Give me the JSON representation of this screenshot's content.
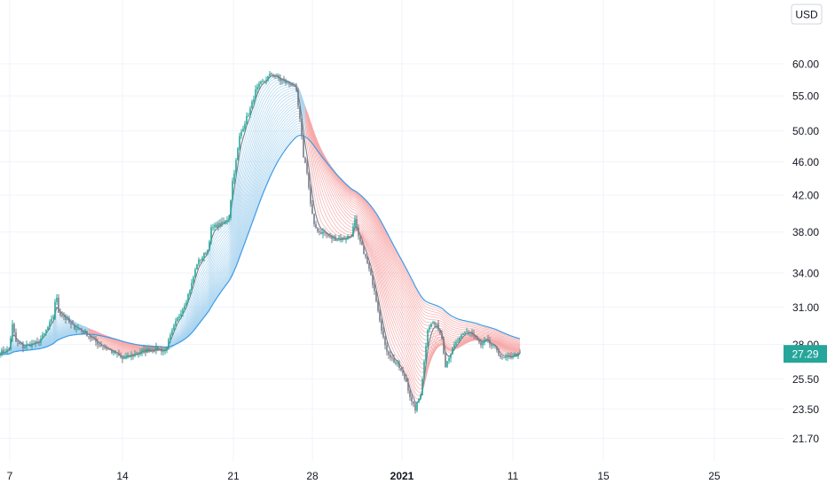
{
  "currency_button": "USD",
  "last_price_label": "27.29",
  "colors": {
    "grid": "#f0f3fa",
    "axis_text": "#131722",
    "up_candle": "#26a69a",
    "down_candle": "#787b86",
    "ribbon_fast": "#787b86",
    "ribbon_slow": "#3d9be9",
    "ribbon_bull": "#a8d4ee",
    "ribbon_bear": "#f7a8a8",
    "price_label_bg": "#26a69a"
  },
  "chart_data": {
    "type": "candlestick",
    "scale": "log",
    "ylim": [
      20.9,
      68
    ],
    "y_ticks": [
      60.0,
      55.0,
      50.0,
      46.0,
      42.0,
      38.0,
      34.0,
      31.0,
      28.0,
      25.5,
      23.5,
      21.7
    ],
    "y_tick_labels": [
      "60.00",
      "55.00",
      "50.00",
      "46.00",
      "42.00",
      "38.00",
      "34.00",
      "31.00",
      "28.00",
      "25.50",
      "23.50",
      "21.70"
    ],
    "x_ticks": [
      {
        "label": "7",
        "bold": false
      },
      {
        "label": "14",
        "bold": false
      },
      {
        "label": "21",
        "bold": false
      },
      {
        "label": "28",
        "bold": false
      },
      {
        "label": "2021",
        "bold": true
      },
      {
        "label": "11",
        "bold": false
      },
      {
        "label": "15",
        "bold": false
      },
      {
        "label": "25",
        "bold": false
      }
    ],
    "last_price": 27.29,
    "price_path": [
      [
        0,
        27.4
      ],
      [
        10,
        27.6
      ],
      [
        14,
        29.5
      ],
      [
        18,
        28.2
      ],
      [
        26,
        27.8
      ],
      [
        34,
        28.0
      ],
      [
        42,
        28.1
      ],
      [
        50,
        28.8
      ],
      [
        56,
        29.6
      ],
      [
        60,
        30.1
      ],
      [
        63,
        32.2
      ],
      [
        66,
        30.6
      ],
      [
        72,
        30.2
      ],
      [
        80,
        29.5
      ],
      [
        88,
        29.2
      ],
      [
        96,
        28.9
      ],
      [
        104,
        28.4
      ],
      [
        112,
        28.0
      ],
      [
        120,
        27.7
      ],
      [
        130,
        27.3
      ],
      [
        138,
        26.9
      ],
      [
        146,
        27.1
      ],
      [
        156,
        27.4
      ],
      [
        166,
        27.6
      ],
      [
        176,
        27.7
      ],
      [
        186,
        27.5
      ],
      [
        192,
        28.6
      ],
      [
        198,
        29.7
      ],
      [
        204,
        30.6
      ],
      [
        210,
        31.6
      ],
      [
        216,
        33.0
      ],
      [
        222,
        34.9
      ],
      [
        228,
        35.5
      ],
      [
        234,
        36.2
      ],
      [
        238,
        38.3
      ],
      [
        244,
        38.7
      ],
      [
        252,
        38.9
      ],
      [
        258,
        39.6
      ],
      [
        262,
        43.6
      ],
      [
        266,
        46.0
      ],
      [
        270,
        49.2
      ],
      [
        274,
        50.6
      ],
      [
        278,
        51.8
      ],
      [
        282,
        53.0
      ],
      [
        288,
        55.7
      ],
      [
        294,
        56.9
      ],
      [
        300,
        57.6
      ],
      [
        306,
        58.4
      ],
      [
        310,
        58.1
      ],
      [
        316,
        57.4
      ],
      [
        322,
        57.1
      ],
      [
        330,
        56.7
      ],
      [
        334,
        55.5
      ],
      [
        338,
        51.5
      ],
      [
        342,
        46.7
      ],
      [
        346,
        44.8
      ],
      [
        350,
        41.0
      ],
      [
        354,
        38.6
      ],
      [
        360,
        38.0
      ],
      [
        366,
        37.9
      ],
      [
        372,
        37.4
      ],
      [
        380,
        37.3
      ],
      [
        388,
        37.3
      ],
      [
        396,
        37.7
      ],
      [
        400,
        39.2
      ],
      [
        404,
        37.4
      ],
      [
        410,
        36.0
      ],
      [
        416,
        34.3
      ],
      [
        422,
        32.5
      ],
      [
        428,
        30.0
      ],
      [
        434,
        27.8
      ],
      [
        442,
        26.9
      ],
      [
        450,
        26.3
      ],
      [
        458,
        25.3
      ],
      [
        464,
        23.9
      ],
      [
        468,
        23.5
      ],
      [
        474,
        24.5
      ],
      [
        478,
        26.7
      ],
      [
        482,
        29.3
      ],
      [
        488,
        29.7
      ],
      [
        494,
        29.3
      ],
      [
        498,
        28.5
      ],
      [
        502,
        26.5
      ],
      [
        506,
        27.1
      ],
      [
        512,
        27.9
      ],
      [
        518,
        28.4
      ],
      [
        524,
        28.9
      ],
      [
        530,
        29.0
      ],
      [
        536,
        28.5
      ],
      [
        542,
        27.9
      ],
      [
        548,
        28.3
      ],
      [
        554,
        27.9
      ],
      [
        560,
        27.6
      ],
      [
        566,
        26.9
      ],
      [
        572,
        27.0
      ],
      [
        580,
        27.2
      ],
      [
        587,
        27.3
      ]
    ]
  }
}
